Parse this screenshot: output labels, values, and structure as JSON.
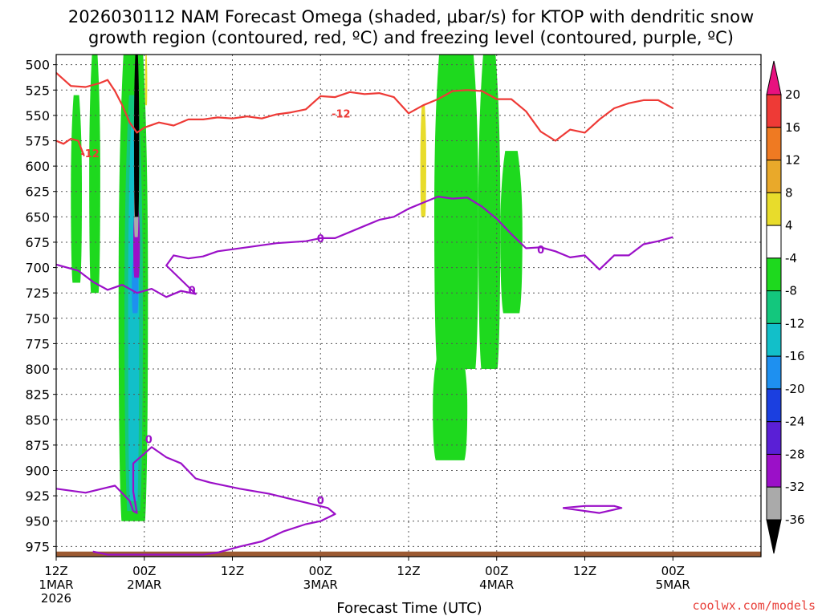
{
  "title_line1": "2026030112 NAM Forecast Omega (shaded, μbar/s) for KTOP with dendritic snow",
  "title_line2": "growth region (contoured, red, ºC) and freezing level (contoured, purple, ºC)",
  "credit": "coolwx.com/models",
  "chart_data": {
    "type": "heatmap",
    "title": "2026030112 NAM Forecast Omega (shaded, μbar/s) for KTOP with dendritic snow growth region (contoured, red, ºC) and freezing level (contoured, purple, ºC)",
    "xlabel": "Forecast Time (UTC)",
    "ylabel": "",
    "x_range_hours": [
      0,
      96
    ],
    "y_range_hPa": [
      490,
      985
    ],
    "y_inverted": true,
    "grid": true,
    "x_ticks": [
      {
        "hour": 0,
        "line1": "12Z",
        "line2": "1MAR",
        "line3": "2026"
      },
      {
        "hour": 12,
        "line1": "00Z",
        "line2": "2MAR",
        "line3": ""
      },
      {
        "hour": 24,
        "line1": "12Z",
        "line2": "",
        "line3": ""
      },
      {
        "hour": 36,
        "line1": "00Z",
        "line2": "3MAR",
        "line3": ""
      },
      {
        "hour": 48,
        "line1": "12Z",
        "line2": "",
        "line3": ""
      },
      {
        "hour": 60,
        "line1": "00Z",
        "line2": "4MAR",
        "line3": ""
      },
      {
        "hour": 72,
        "line1": "12Z",
        "line2": "",
        "line3": ""
      },
      {
        "hour": 84,
        "line1": "00Z",
        "line2": "5MAR",
        "line3": ""
      }
    ],
    "y_ticks": [
      500,
      525,
      550,
      575,
      600,
      625,
      650,
      675,
      700,
      725,
      750,
      775,
      800,
      825,
      850,
      875,
      900,
      925,
      950,
      975
    ],
    "colorbar": {
      "label_values": [
        "20",
        "16",
        "12",
        "8",
        "4",
        "-4",
        "-8",
        "-12",
        "-16",
        "-20",
        "-24",
        "-28",
        "-32",
        "-36"
      ],
      "bins": [
        {
          "range": ">20",
          "color": "#e8117f"
        },
        {
          "range": "16 to 20",
          "color": "#ee3a36"
        },
        {
          "range": "12 to 16",
          "color": "#ef7a22"
        },
        {
          "range": "8 to 12",
          "color": "#e9a92a"
        },
        {
          "range": "4 to 8",
          "color": "#e8dc2b"
        },
        {
          "range": "-4 to 4",
          "color": "#ffffff"
        },
        {
          "range": "-8 to -4",
          "color": "#1ed91e"
        },
        {
          "range": "-12 to -8",
          "color": "#13c77d"
        },
        {
          "range": "-16 to -12",
          "color": "#12bfc9"
        },
        {
          "range": "-20 to -16",
          "color": "#1e90f0"
        },
        {
          "range": "-24 to -20",
          "color": "#1b3fe0"
        },
        {
          "range": "-28 to -24",
          "color": "#5a1fd6"
        },
        {
          "range": "-32 to -28",
          "color": "#9b10c8"
        },
        {
          "range": "-36 to -32",
          "color": "#aaaaaa"
        },
        {
          "range": "<-36",
          "color": "#000000"
        }
      ]
    },
    "contours": {
      "dendritic_red": {
        "color": "#ee3a36",
        "label": "-12",
        "upper_boundary": [
          [
            0,
            508
          ],
          [
            2,
            521
          ],
          [
            4,
            522
          ],
          [
            6,
            518
          ],
          [
            7,
            515
          ],
          [
            8,
            526
          ],
          [
            9,
            540
          ],
          [
            10,
            557
          ],
          [
            11,
            567
          ],
          [
            12,
            562
          ],
          [
            14,
            557
          ],
          [
            16,
            560
          ],
          [
            18,
            554
          ],
          [
            20,
            554
          ],
          [
            22,
            552
          ],
          [
            24,
            553
          ],
          [
            26,
            551
          ],
          [
            28,
            553
          ],
          [
            30,
            549
          ],
          [
            32,
            547
          ],
          [
            34,
            544
          ],
          [
            36,
            531
          ],
          [
            38,
            532
          ],
          [
            40,
            527
          ],
          [
            42,
            529
          ],
          [
            44,
            528
          ],
          [
            46,
            532
          ],
          [
            48,
            548
          ],
          [
            50,
            540
          ],
          [
            52,
            534
          ],
          [
            54,
            526
          ],
          [
            56,
            525
          ],
          [
            58,
            526
          ],
          [
            60,
            534
          ],
          [
            62,
            534
          ],
          [
            64,
            546
          ],
          [
            66,
            566
          ],
          [
            68,
            575
          ],
          [
            70,
            564
          ],
          [
            72,
            567
          ],
          [
            74,
            554
          ],
          [
            76,
            543
          ],
          [
            78,
            538
          ],
          [
            80,
            535
          ],
          [
            82,
            535
          ],
          [
            84,
            543
          ]
        ],
        "lower_boundary": [
          [
            0,
            575
          ],
          [
            1,
            578
          ],
          [
            2,
            573
          ],
          [
            3,
            575
          ],
          [
            3.8,
            590
          ]
        ]
      },
      "freezing_purple": {
        "color": "#9b10c8",
        "label": "0",
        "upper_line": [
          [
            0,
            697
          ],
          [
            3,
            703
          ],
          [
            5,
            714
          ],
          [
            7,
            722
          ],
          [
            9,
            717
          ],
          [
            11,
            725
          ],
          [
            13,
            721
          ],
          [
            15,
            729
          ],
          [
            17,
            723
          ],
          [
            19,
            726
          ],
          [
            15,
            698
          ],
          [
            16,
            688
          ],
          [
            18,
            691
          ],
          [
            20,
            689
          ],
          [
            22,
            684
          ],
          [
            26,
            680
          ],
          [
            30,
            676
          ],
          [
            34,
            674
          ],
          [
            36,
            671
          ],
          [
            38,
            671
          ],
          [
            40,
            665
          ],
          [
            42,
            659
          ],
          [
            44,
            653
          ],
          [
            46,
            650
          ],
          [
            48,
            642
          ],
          [
            50,
            636
          ],
          [
            52,
            630
          ],
          [
            54,
            632
          ],
          [
            56,
            631
          ],
          [
            58,
            640
          ],
          [
            60,
            652
          ],
          [
            62,
            667
          ],
          [
            64,
            681
          ],
          [
            66,
            680
          ],
          [
            68,
            684
          ],
          [
            70,
            690
          ],
          [
            72,
            688
          ],
          [
            74,
            702
          ],
          [
            76,
            688
          ],
          [
            78,
            688
          ],
          [
            80,
            677
          ],
          [
            82,
            674
          ],
          [
            84,
            670
          ]
        ],
        "lower_line": [
          [
            0,
            918
          ],
          [
            4,
            922
          ],
          [
            8,
            915
          ],
          [
            10,
            930
          ],
          [
            10.5,
            940
          ],
          [
            11,
            942
          ],
          [
            10.5,
            921
          ],
          [
            10.5,
            893
          ],
          [
            13,
            877
          ],
          [
            15,
            887
          ],
          [
            17,
            893
          ],
          [
            19,
            908
          ],
          [
            21,
            912
          ],
          [
            25,
            918
          ],
          [
            29,
            923
          ],
          [
            33,
            930
          ],
          [
            37,
            937
          ],
          [
            38,
            943
          ],
          [
            36,
            950
          ],
          [
            34,
            953
          ],
          [
            31,
            960
          ],
          [
            28,
            970
          ],
          [
            25,
            975
          ],
          [
            22,
            981
          ],
          [
            20,
            983
          ],
          [
            14,
            983
          ],
          [
            7,
            983
          ],
          [
            5,
            980
          ]
        ],
        "small_loop": [
          [
            69,
            937
          ],
          [
            72,
            935
          ],
          [
            76,
            935
          ],
          [
            77,
            937
          ],
          [
            74,
            942
          ],
          [
            71,
            939
          ],
          [
            69,
            937
          ]
        ]
      }
    },
    "shaded_regions": [
      {
        "color": "#1ed91e",
        "range": "-8 to -4",
        "time_hours": [
          2,
          3.5
        ],
        "pressure_hPa": [
          530,
          715
        ]
      },
      {
        "color": "#1ed91e",
        "range": "-8 to -4",
        "time_hours": [
          4.5,
          6.0
        ],
        "pressure_hPa": [
          490,
          725
        ]
      },
      {
        "color": "#1ed91e",
        "range": "-8 to -4",
        "time_hours": [
          8.5,
          12.5
        ],
        "pressure_hPa": [
          490,
          950
        ]
      },
      {
        "color": "#13c77d",
        "range": "-12 to -8",
        "time_hours": [
          9.3,
          11.8
        ],
        "pressure_hPa": [
          530,
          940
        ]
      },
      {
        "color": "#12bfc9",
        "range": "-16 to -12",
        "time_hours": [
          9.8,
          11.3
        ],
        "pressure_hPa": [
          560,
          930
        ]
      },
      {
        "color": "#1e90f0",
        "range": "-20 to -16",
        "time_hours": [
          10.3,
          11.2
        ],
        "pressure_hPa": [
          690,
          745
        ]
      },
      {
        "color": "#9b10c8",
        "range": "-32 to -28",
        "time_hours": [
          10.5,
          11.4
        ],
        "pressure_hPa": [
          640,
          710
        ]
      },
      {
        "color": "#aaaaaa",
        "range": "-36 to -32",
        "time_hours": [
          10.6,
          11.2
        ],
        "pressure_hPa": [
          600,
          670
        ]
      },
      {
        "color": "#000000",
        "range": "<-36",
        "time_hours": [
          10.6,
          11.3
        ],
        "pressure_hPa": [
          490,
          650
        ]
      },
      {
        "color": "#e8dc2b",
        "range": "4 to 8",
        "time_hours": [
          12.1,
          12.4
        ],
        "pressure_hPa": [
          490,
          540
        ]
      },
      {
        "color": "#e8dc2b",
        "range": "4 to 8",
        "time_hours": [
          49.6,
          50.4
        ],
        "pressure_hPa": [
          540,
          650
        ]
      },
      {
        "color": "#1ed91e",
        "range": "-8 to -4",
        "time_hours": [
          51.5,
          57.5
        ],
        "pressure_hPa": [
          490,
          800
        ]
      },
      {
        "color": "#1ed91e",
        "range": "-8 to -4",
        "time_hours": [
          57.5,
          60.5
        ],
        "pressure_hPa": [
          490,
          800
        ]
      },
      {
        "color": "#1ed91e",
        "range": "-8 to -4",
        "time_hours": [
          60.5,
          63.5
        ],
        "pressure_hPa": [
          585,
          745
        ]
      },
      {
        "color": "#1ed91e",
        "range": "-8 to -4",
        "time_hours": [
          51.3,
          56.0
        ],
        "pressure_hPa": [
          785,
          890
        ]
      }
    ],
    "terrain": {
      "color": "#9c5a32",
      "pressure_hPa": [
        980,
        990
      ]
    }
  }
}
